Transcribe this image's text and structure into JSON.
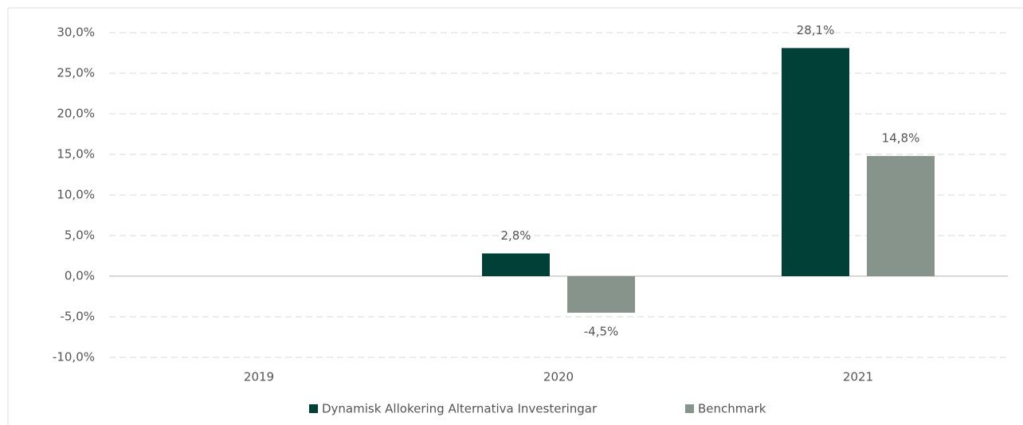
{
  "chart_data": {
    "type": "bar",
    "categories": [
      "2019",
      "2020",
      "2021"
    ],
    "series": [
      {
        "name": "Dynamisk Allokering Alternativa Investeringar",
        "color": "#004037",
        "values": [
          null,
          2.8,
          28.1
        ],
        "value_labels": [
          null,
          "2,8%",
          "28,1%"
        ]
      },
      {
        "name": "Benchmark",
        "color": "#87948c",
        "values": [
          null,
          -4.5,
          14.8
        ],
        "value_labels": [
          null,
          "-4,5%",
          "14,8%"
        ]
      }
    ],
    "ylim": [
      -10,
      30
    ],
    "yticks": [
      {
        "value": -10,
        "label": "-10,0%"
      },
      {
        "value": -5,
        "label": "-5,0%"
      },
      {
        "value": 0,
        "label": "0,0%"
      },
      {
        "value": 5,
        "label": "5,0%"
      },
      {
        "value": 10,
        "label": "10,0%"
      },
      {
        "value": 15,
        "label": "15,0%"
      },
      {
        "value": 20,
        "label": "20,0%"
      },
      {
        "value": 25,
        "label": "25,0%"
      },
      {
        "value": 30,
        "label": "30,0%"
      }
    ],
    "grid": true,
    "legend": "bottom"
  }
}
